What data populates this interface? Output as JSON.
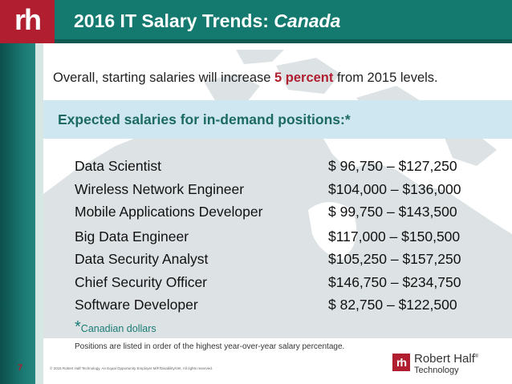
{
  "brand": {
    "logo_text": "rh",
    "brand_name": "Robert Half",
    "brand_mark": "®",
    "brand_sub": "Technology"
  },
  "title": {
    "main": "2016 IT Salary Trends: ",
    "region": "Canada"
  },
  "intro": {
    "before": "Overall, starting salaries will increase ",
    "highlight": "5 percent",
    "after": " from 2015 levels."
  },
  "section_header": "Expected salaries for in-demand positions:*",
  "salaries": [
    {
      "position": "Data Scientist",
      "range": "$  96,750 – $127,250"
    },
    {
      "position": "Wireless Network Engineer",
      "range": "$104,000 – $136,000"
    },
    {
      "position": "Mobile Applications Developer",
      "range": "$  99,750 – $143,500"
    },
    {
      "position": "Big Data Engineer",
      "range": "$117,000 – $150,500"
    },
    {
      "position": "Data Security Analyst",
      "range": "$105,250 – $157,250"
    },
    {
      "position": "Chief Security Officer",
      "range": "$146,750 – $234,750"
    },
    {
      "position": "Software Developer",
      "range": "$  82,750 – $122,500"
    }
  ],
  "currency_note": {
    "star": "*",
    "text": "Canadian dollars"
  },
  "order_note": "Positions are listed in order of the highest year-over-year salary percentage.",
  "page_number": "7",
  "footer": "© 2015 Robert Half Technology. An Equal Opportunity Employer M/F/Disability/Vet. All rights reserved.",
  "colors": {
    "brand_red": "#b01e2f",
    "teal": "#147a6f",
    "band": "#cfe7f0",
    "map": "#dde3e5"
  }
}
